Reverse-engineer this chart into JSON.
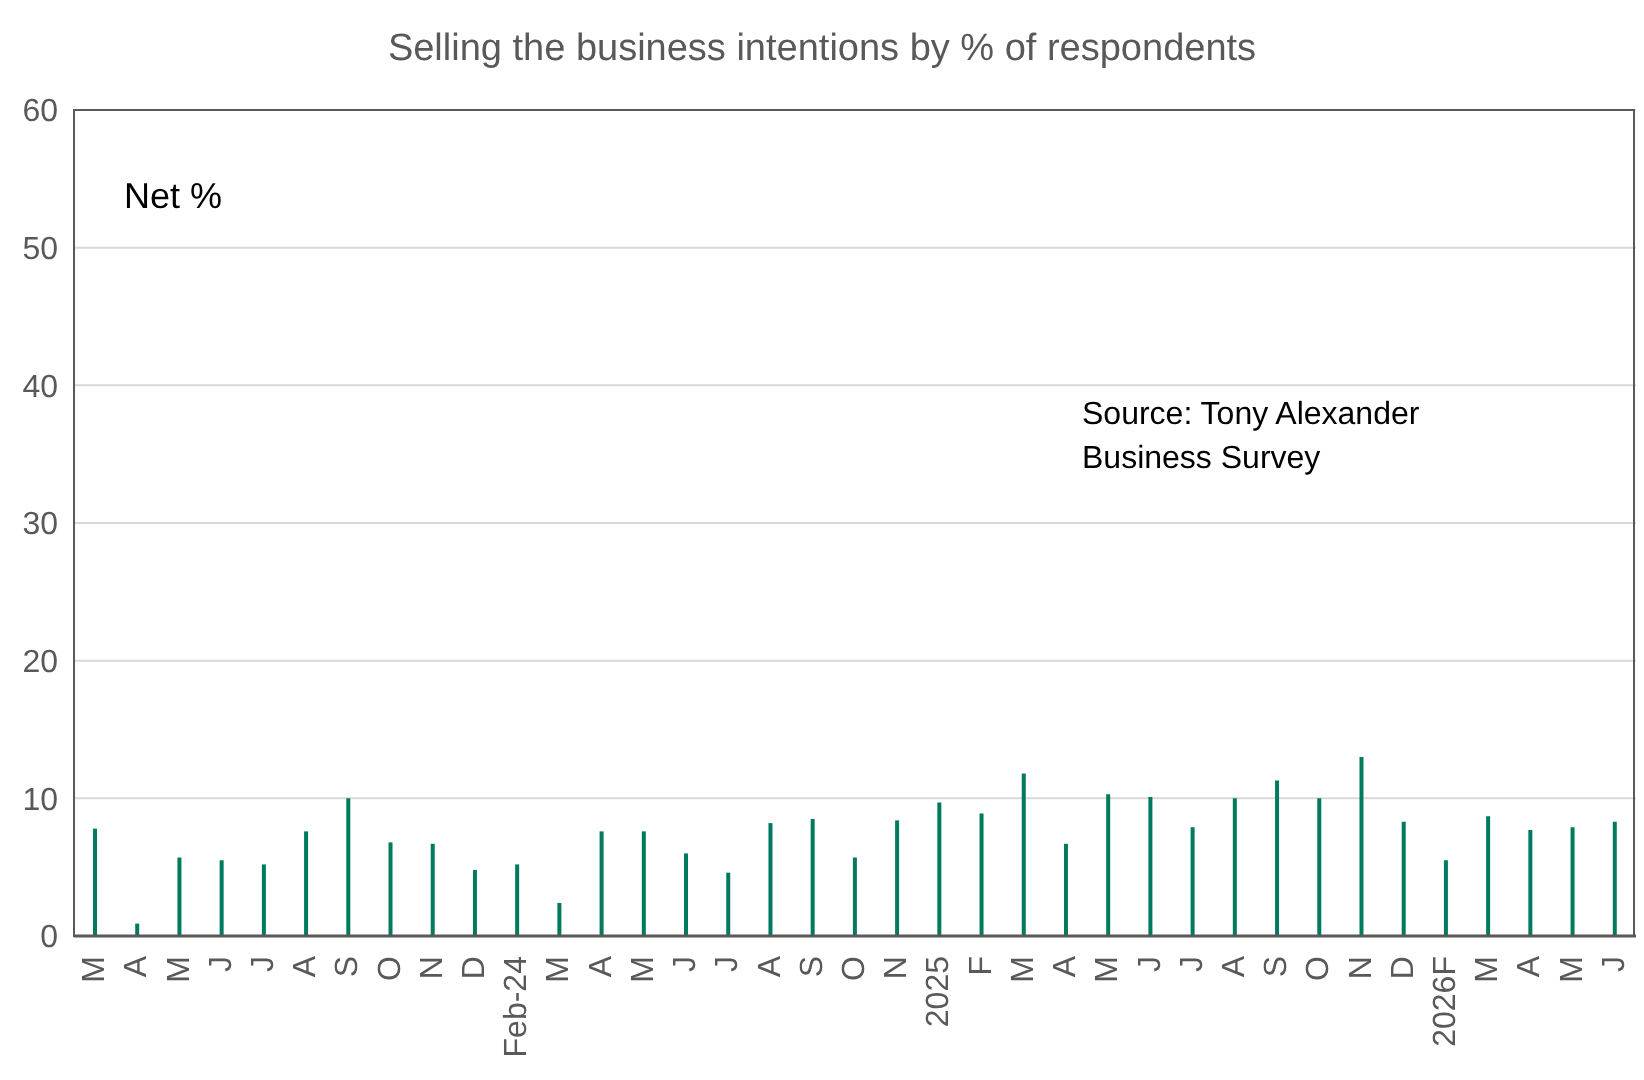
{
  "chart_data": {
    "type": "bar",
    "title": "Selling the business intentions by % of respondents",
    "ylabel": "Net %",
    "annotations": [
      "Source: Tony Alexander Business Survey"
    ],
    "categories": [
      "M",
      "A",
      "M",
      "J",
      "J",
      "A",
      "S",
      "O",
      "N",
      "D",
      "Feb-24",
      "M",
      "A",
      "M",
      "J",
      "J",
      "A",
      "S",
      "O",
      "N",
      "2025",
      "F",
      "M",
      "A",
      "M",
      "J",
      "J",
      "A",
      "S",
      "O",
      "N",
      "D",
      "2026F",
      "M",
      "A",
      "M",
      "J"
    ],
    "values": [
      7.8,
      0.9,
      5.7,
      5.5,
      5.2,
      7.6,
      10.0,
      6.8,
      6.7,
      4.8,
      5.2,
      2.4,
      7.6,
      7.6,
      6.0,
      4.6,
      8.2,
      8.5,
      5.7,
      8.4,
      9.7,
      8.9,
      11.8,
      6.7,
      10.3,
      10.1,
      7.9,
      10.0,
      11.3,
      10.0,
      13.0,
      8.3,
      5.5,
      8.7,
      7.7,
      7.9,
      8.3
    ],
    "color": "#007a5e",
    "ylim": [
      0,
      60
    ],
    "yticks": [
      0,
      10,
      20,
      30,
      40,
      50,
      60
    ],
    "grid": "y",
    "legend": false
  }
}
